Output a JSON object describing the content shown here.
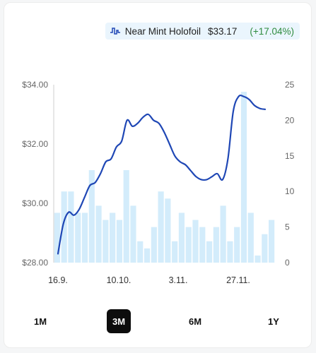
{
  "legend": {
    "icon": "price-line-icon",
    "name": "Near Mint Holofoil",
    "price": "$33.17",
    "change": "(+17.04%)"
  },
  "colors": {
    "line": "#1f47b5",
    "bars": "#d3ecfb",
    "change": "#2e8b3e",
    "axis_text": "#666666",
    "active_tab_bg": "#0d0d0d"
  },
  "range_tabs": [
    {
      "label": "1M",
      "active": false
    },
    {
      "label": "3M",
      "active": true
    },
    {
      "label": "6M",
      "active": false
    },
    {
      "label": "1Y",
      "active": false
    }
  ],
  "chart_data": {
    "type": "line",
    "title": "",
    "x_tick_labels": [
      "16.9.",
      "10.10.",
      "3.11.",
      "27.11."
    ],
    "x_tick_index": [
      0,
      15,
      27,
      41
    ],
    "left_axis": {
      "ticks": [
        "$28.00",
        "$30.00",
        "$32.00",
        "$34.00"
      ],
      "values": [
        28,
        30,
        32,
        34
      ],
      "ylim": [
        28,
        34
      ]
    },
    "right_axis": {
      "ticks": [
        "0",
        "5",
        "10",
        "15",
        "20",
        "25"
      ],
      "values": [
        0,
        5,
        10,
        15,
        20,
        25
      ],
      "ylim": [
        0,
        25
      ]
    },
    "series": [
      {
        "name": "Near Mint Holofoil",
        "axis": "left",
        "style": "line",
        "values": [
          28.3,
          29.3,
          29.7,
          29.6,
          29.8,
          30.2,
          30.6,
          30.7,
          31.0,
          31.4,
          31.5,
          31.9,
          32.1,
          32.8,
          32.6,
          32.7,
          32.9,
          33.0,
          32.8,
          32.7,
          32.4,
          32.0,
          31.6,
          31.4,
          31.3,
          31.1,
          30.9,
          30.8,
          30.8,
          30.9,
          31.0,
          30.8,
          31.5,
          33.1,
          33.6,
          33.6,
          33.5,
          33.3,
          33.2,
          33.17
        ]
      },
      {
        "name": "",
        "axis": "right",
        "style": "bar",
        "values": [
          7,
          10,
          10,
          7,
          7,
          13,
          8,
          6,
          7,
          6,
          13,
          8,
          3,
          2,
          5,
          10,
          9,
          3,
          7,
          5,
          6,
          5,
          3,
          5,
          8,
          3,
          5,
          24,
          7,
          1,
          4,
          6
        ]
      }
    ],
    "grid": false,
    "legend_placement": "top-right"
  }
}
